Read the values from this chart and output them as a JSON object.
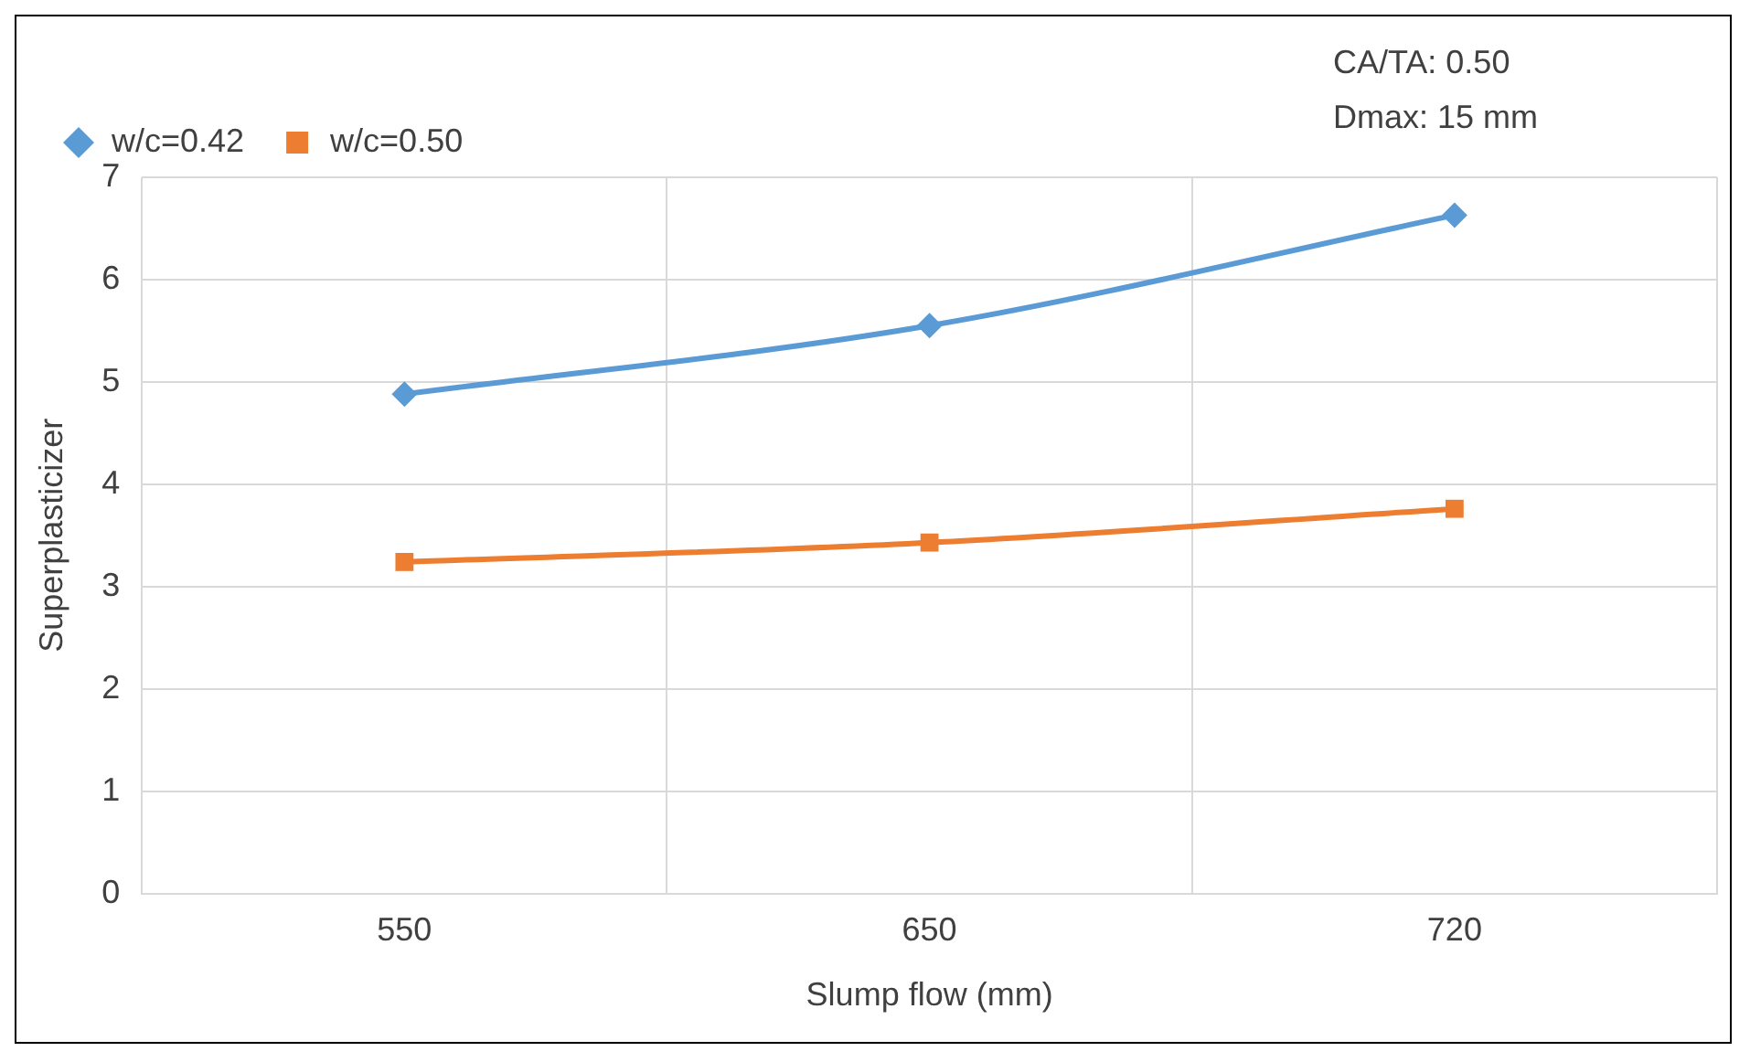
{
  "chart_data": {
    "type": "line",
    "xlabel": "Slump flow (mm)",
    "ylabel": "Superplasticizer",
    "categories": [
      "550",
      "650",
      "720"
    ],
    "series": [
      {
        "name": "w/c=0.42",
        "color": "#5b9bd5",
        "marker": "diamond",
        "values": [
          4.88,
          5.55,
          6.63
        ]
      },
      {
        "name": "w/c=0.50",
        "color": "#ed7d31",
        "marker": "square",
        "values": [
          3.24,
          3.43,
          3.76
        ]
      }
    ],
    "ylim": [
      0,
      7
    ],
    "yticks": [
      0,
      1,
      2,
      3,
      4,
      5,
      6,
      7
    ],
    "grid": true,
    "legend": "top left",
    "annotations": [
      "CA/TA: 0.50",
      "Dmax: 15 mm"
    ]
  }
}
